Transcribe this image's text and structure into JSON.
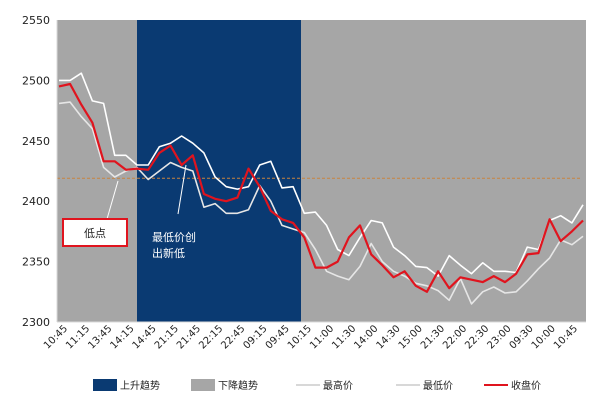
{
  "chart_data": {
    "type": "line",
    "ylim": [
      2300,
      2550
    ],
    "yticks": [
      2300,
      2350,
      2400,
      2450,
      2500,
      2550
    ],
    "x_labels": [
      "10:45",
      "11:15",
      "13:45",
      "14:15",
      "14:45",
      "21:15",
      "21:45",
      "22:15",
      "22:45",
      "09:15",
      "09:45",
      "10:15",
      "11:00",
      "11:30",
      "14:00",
      "14:30",
      "15:00",
      "21:30",
      "22:00",
      "22:30",
      "23:00",
      "09:30",
      "10:00",
      "10:45"
    ],
    "reference_line": 2419,
    "series": [
      {
        "name": "最高价",
        "color": "#ffffff",
        "values": [
          2500,
          2500,
          2506,
          2483,
          2481,
          2438,
          2438,
          2430,
          2430,
          2445,
          2448,
          2454,
          2448,
          2440,
          2420,
          2412,
          2410,
          2412,
          2430,
          2433,
          2411,
          2412,
          2390,
          2391,
          2380,
          2360,
          2355,
          2370,
          2384,
          2382,
          2362,
          2355,
          2346,
          2345,
          2338,
          2355,
          2347,
          2340,
          2349,
          2342,
          2342,
          2341,
          2362,
          2360,
          2384,
          2388,
          2382,
          2397
        ]
      },
      {
        "name": "最低价",
        "color": "#e6e6e6",
        "values": [
          2481,
          2482,
          2470,
          2460,
          2428,
          2420,
          2425,
          2428,
          2418,
          2425,
          2432,
          2428,
          2425,
          2395,
          2398,
          2390,
          2390,
          2393,
          2413,
          2400,
          2380,
          2377,
          2374,
          2360,
          2342,
          2338,
          2335,
          2346,
          2365,
          2350,
          2342,
          2338,
          2332,
          2330,
          2326,
          2318,
          2336,
          2315,
          2325,
          2329,
          2324,
          2325,
          2334,
          2344,
          2353,
          2368,
          2364,
          2371
        ]
      },
      {
        "name": "收盘价",
        "color": "#e0141e",
        "values": [
          2495,
          2497,
          2480,
          2465,
          2433,
          2433,
          2426,
          2427,
          2426,
          2440,
          2446,
          2430,
          2438,
          2406,
          2402,
          2400,
          2403,
          2427,
          2412,
          2392,
          2385,
          2382,
          2370,
          2345,
          2345,
          2350,
          2370,
          2380,
          2356,
          2347,
          2337,
          2342,
          2330,
          2325,
          2342,
          2328,
          2337,
          2335,
          2333,
          2338,
          2333,
          2340,
          2356,
          2357,
          2385,
          2367,
          2375,
          2384
        ]
      }
    ],
    "legend": [
      {
        "label": "上升趋势",
        "kind": "box",
        "color": "#0a3a72"
      },
      {
        "label": "下降趋势",
        "kind": "box",
        "color": "#a6a6a6"
      },
      {
        "label": "最高价",
        "kind": "line",
        "color": "#d8d8d8"
      },
      {
        "label": "最低价",
        "kind": "line",
        "color": "#d8d8d8"
      },
      {
        "label": "收盘价",
        "kind": "line",
        "color": "#e0141e"
      }
    ],
    "annotations": {
      "low_point_label": "低点",
      "low_creation_line1": "最低价创",
      "low_creation_line2": "出新低"
    },
    "colors": {
      "uptrend": "#0a3a72",
      "downtrend": "#a6a6a6",
      "reference": "#c8833f",
      "annotation_box": "#e0141e"
    }
  }
}
